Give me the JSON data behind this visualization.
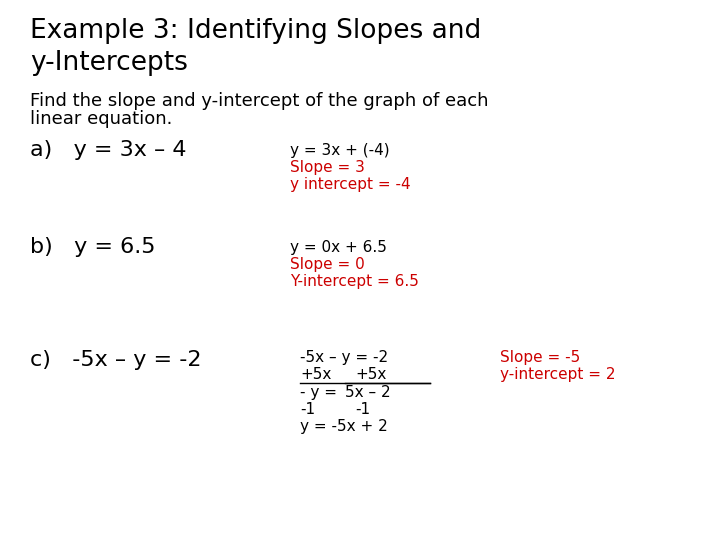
{
  "bg_color": "#ffffff",
  "title_line1": "Example 3: Identifying Slopes and",
  "title_line2": "y-Intercepts",
  "subtitle_line1": "Find the slope and y-intercept of the graph of each",
  "subtitle_line2": "linear equation.",
  "part_a_label": "a)   y = 3x – 4",
  "part_a_step1": "y = 3x + (-4)",
  "part_a_step2": "Slope = 3",
  "part_a_step3": "y intercept = -4",
  "part_b_label": "b)   y = 6.5",
  "part_b_step1": "y = 0x + 6.5",
  "part_b_step2": "Slope = 0",
  "part_b_step3": "Y-intercept = 6.5",
  "part_c_label": "c)   -5x – y = -2",
  "part_c_step1": "-5x – y = -2",
  "part_c_step2a": "+5x",
  "part_c_step2b": "+5x",
  "part_c_step3_left": "- y =",
  "part_c_step3_right": "5x – 2",
  "part_c_step4a": "-1",
  "part_c_step4b": "-1",
  "part_c_step5": "y = -5x + 2",
  "part_c_ans1": "Slope = -5",
  "part_c_ans2": "y-intercept = 2",
  "black": "#000000",
  "red": "#cc0000",
  "title_fontsize": 19,
  "subtitle_fontsize": 13,
  "label_fontsize": 16,
  "step_fontsize": 11
}
